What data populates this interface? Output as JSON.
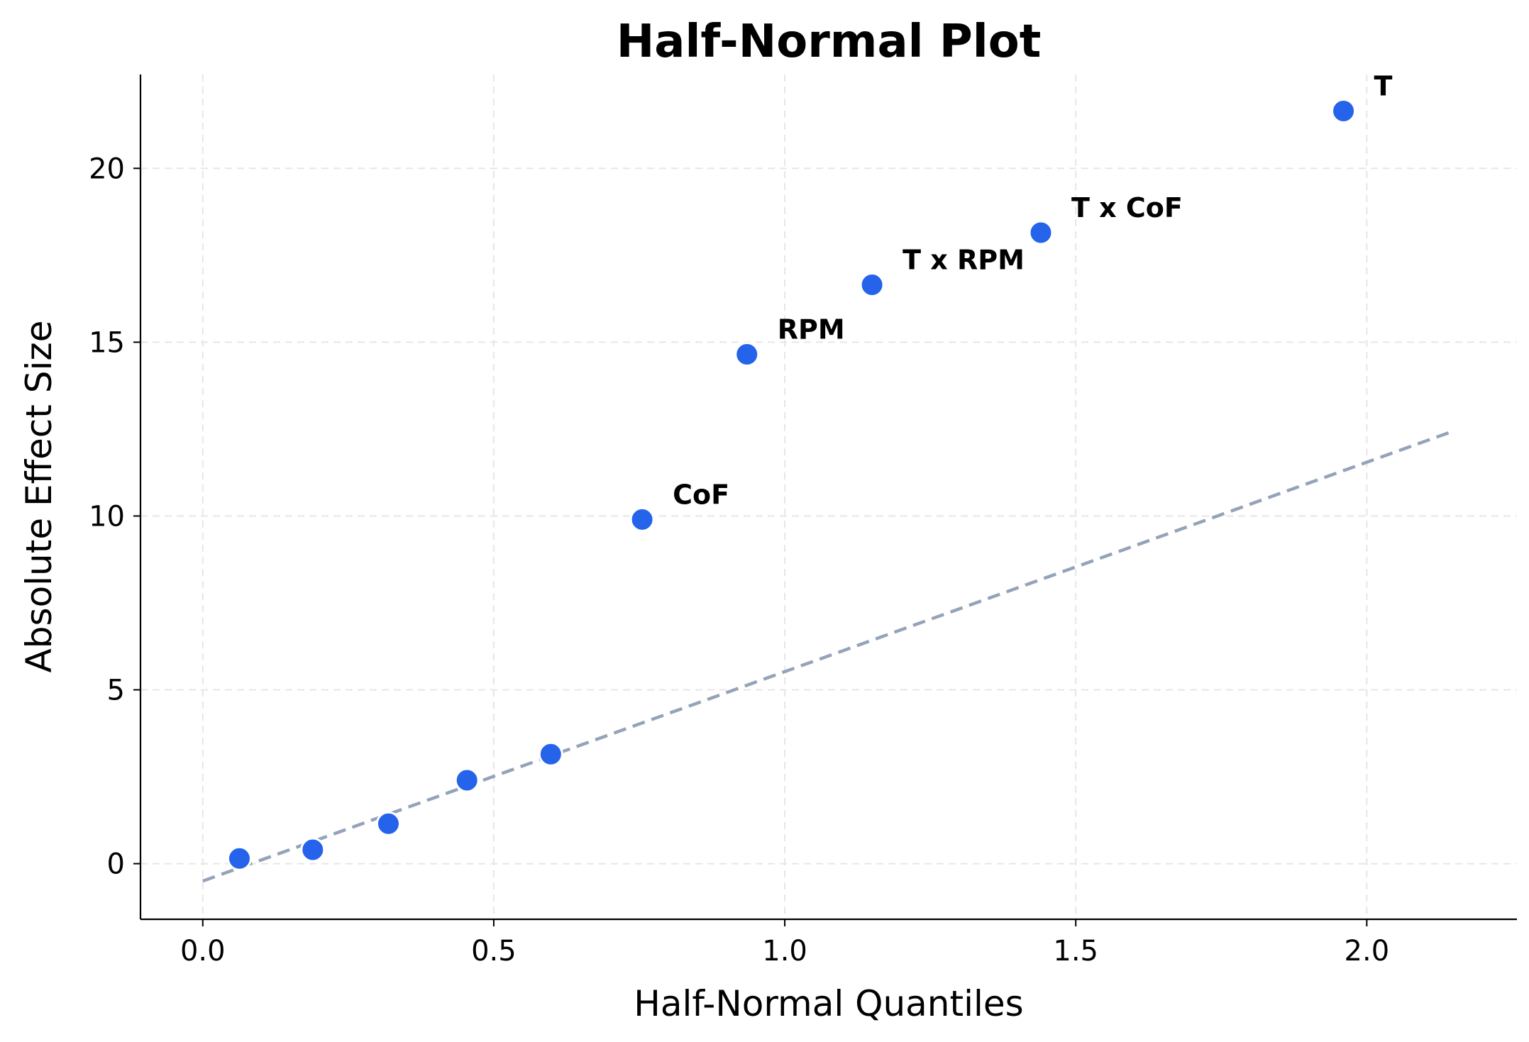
{
  "chart_data": {
    "type": "scatter",
    "title": "Half-Normal Plot",
    "xlabel": "Half-Normal Quantiles",
    "ylabel": "Absolute Effect Size",
    "xlim": [
      -0.107,
      2.258
    ],
    "ylim": [
      -1.6,
      22.7
    ],
    "xticks": [
      0.0,
      0.5,
      1.0,
      1.5,
      2.0
    ],
    "xtick_labels": [
      "0.0",
      "0.5",
      "1.0",
      "1.5",
      "2.0"
    ],
    "yticks": [
      0,
      5,
      10,
      15,
      20
    ],
    "ytick_labels": [
      "0",
      "5",
      "10",
      "15",
      "20"
    ],
    "grid": true,
    "point_color": "#2563eb",
    "line_color": "#94a3b8",
    "points": [
      {
        "x": 0.063,
        "y": 0.15,
        "label": ""
      },
      {
        "x": 0.189,
        "y": 0.4,
        "label": ""
      },
      {
        "x": 0.319,
        "y": 1.15,
        "label": ""
      },
      {
        "x": 0.454,
        "y": 2.4,
        "label": ""
      },
      {
        "x": 0.598,
        "y": 3.15,
        "label": ""
      },
      {
        "x": 0.755,
        "y": 9.9,
        "label": "CoF"
      },
      {
        "x": 0.935,
        "y": 14.65,
        "label": "RPM"
      },
      {
        "x": 1.15,
        "y": 16.65,
        "label": "T x RPM"
      },
      {
        "x": 1.44,
        "y": 18.15,
        "label": "T x CoF"
      },
      {
        "x": 1.96,
        "y": 21.65,
        "label": "T"
      }
    ],
    "reference_line": {
      "x": [
        0.0,
        2.15
      ],
      "y": [
        -0.5,
        12.45
      ],
      "style": "dashed"
    }
  }
}
